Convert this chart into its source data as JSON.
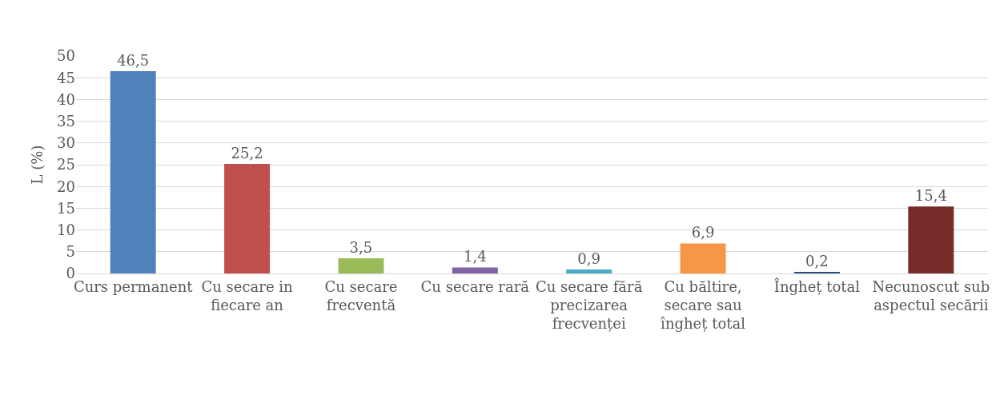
{
  "chart_data": {
    "type": "bar",
    "ylabel": "L (%)",
    "categories": [
      "Curs permanent",
      "Cu secare in fiecare an",
      "Cu secare frecventă",
      "Cu secare rară",
      "Cu secare fără precizarea frecvenței",
      "Cu băltire, secare sau îngheț total",
      "Îngheț total",
      "Necunoscut sub aspectul secării"
    ],
    "values": [
      46.5,
      25.2,
      3.5,
      1.4,
      0.9,
      6.9,
      0.2,
      15.4
    ],
    "colors": [
      "#4f81bd",
      "#c0504d",
      "#9bbb59",
      "#8064a2",
      "#4bacc6",
      "#f79646",
      "#2c4d75",
      "#772c2a"
    ],
    "value_labels": [
      "46,5",
      "25,2",
      "3,5",
      "1,4",
      "0,9",
      "6,9",
      "0,2",
      "15,4"
    ],
    "ylim": [
      0,
      50
    ],
    "yticks": [
      0,
      5,
      10,
      15,
      20,
      25,
      30,
      35,
      40,
      45,
      50
    ],
    "grid": "y"
  }
}
